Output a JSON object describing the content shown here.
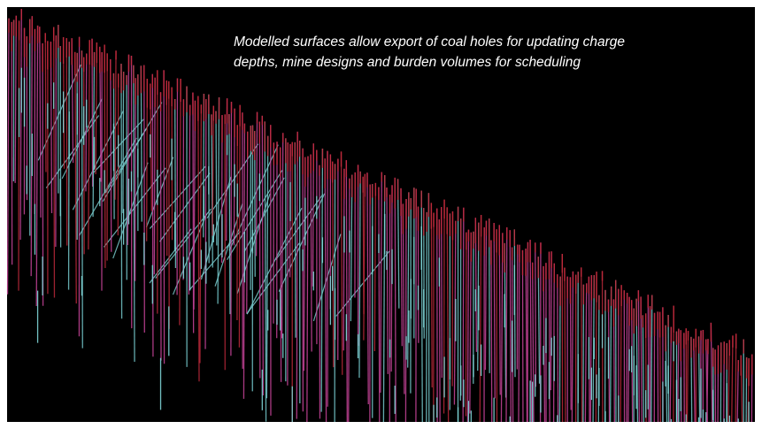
{
  "caption": {
    "lines": [
      "Modelled surfaces allow export of coal holes for updating charge",
      "depths, mine designs and burden volumes for scheduling"
    ]
  }
}
